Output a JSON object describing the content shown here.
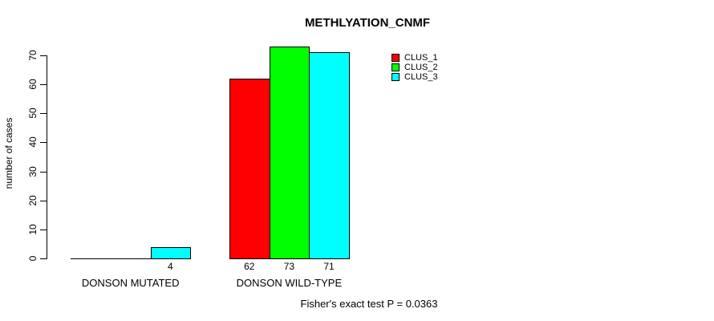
{
  "chart_data": {
    "type": "bar",
    "title": "METHLYATION_CNMF",
    "ylabel": "number of cases",
    "xlabel": "",
    "categories": [
      "DONSON MUTATED",
      "DONSON WILD-TYPE"
    ],
    "series": [
      {
        "name": "CLUS_1",
        "color": "#ff0000",
        "values": [
          0,
          62
        ]
      },
      {
        "name": "CLUS_2",
        "color": "#00ff00",
        "values": [
          0,
          73
        ]
      },
      {
        "name": "CLUS_3",
        "color": "#00ffff",
        "values": [
          4,
          71
        ]
      }
    ],
    "bar_value_labels": {
      "show_nonzero_only": true,
      "values": [
        [
          0,
          0,
          4
        ],
        [
          62,
          73,
          71
        ]
      ]
    },
    "yticks": [
      0,
      10,
      20,
      30,
      40,
      50,
      60,
      70
    ],
    "ylim": [
      0,
      73
    ],
    "grid": false,
    "legend_position": "top-right",
    "annotation": "Fisher's exact test P = 0.0363",
    "colors": {
      "background": "#ffffff",
      "axis": "#000000",
      "text": "#000000"
    }
  }
}
